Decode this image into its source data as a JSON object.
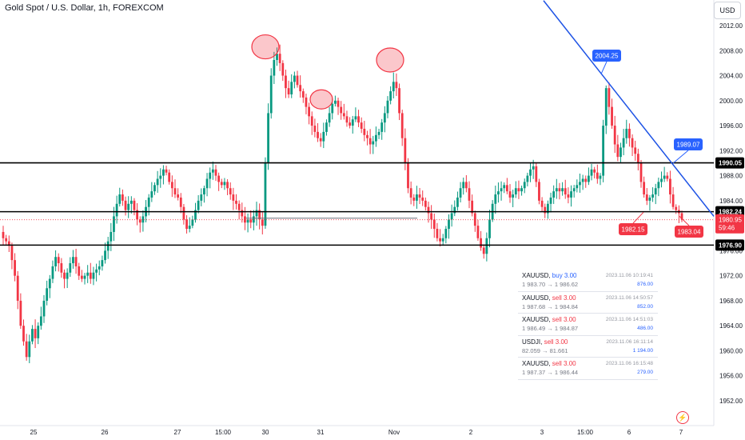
{
  "title": "Gold Spot / U.S. Dollar, 1h, FOREXCOM",
  "currency_button": "USD",
  "bolt_icon": "lightning-icon",
  "colors": {
    "up": "#089981",
    "down": "#f23645",
    "trendline": "#1e53e5",
    "level": "#000000",
    "marker_blue": "#2962ff",
    "marker_red": "#f23645"
  },
  "chart_data": {
    "type": "candlestick",
    "title": "Gold Spot / U.S. Dollar, 1h, FOREXCOM",
    "ylim": [
      1950,
      2014
    ],
    "y_ticks": [
      1952.0,
      1956.0,
      1960.0,
      1964.0,
      1968.0,
      1972.0,
      1976.0,
      1980.0,
      1984.0,
      1988.0,
      1992.0,
      1996.0,
      2000.0,
      2004.0,
      2008.0,
      2012.0
    ],
    "x_ticks": [
      "25",
      "26",
      "27",
      "15:00",
      "30",
      "31",
      "Nov",
      "2",
      "3",
      "15:00",
      "6",
      "7"
    ],
    "horizontal_levels": [
      {
        "label": "1990.05",
        "value": 1990.05
      },
      {
        "label": "1982.24",
        "value": 1982.24
      },
      {
        "label": "1976.90",
        "value": 1976.9
      }
    ],
    "current_price": {
      "label": "1980.95",
      "value": 1980.95,
      "countdown": "59:46"
    },
    "annotations": [
      {
        "text": "2004.25",
        "value": 2004.25,
        "color": "blue"
      },
      {
        "text": "1989.07",
        "value": 1989.07,
        "color": "blue"
      },
      {
        "text": "1982.15",
        "value": 1982.15,
        "color": "red"
      },
      {
        "text": "1983.04",
        "value": 1983.04,
        "color": "red"
      }
    ],
    "candles_close": [
      1978.0,
      1977.5,
      1976.8,
      1974.5,
      1972.0,
      1968.0,
      1964.0,
      1961.5,
      1959.0,
      1961.5,
      1963.5,
      1962.0,
      1964.0,
      1965.5,
      1968.0,
      1970.0,
      1971.5,
      1973.5,
      1975.0,
      1974.0,
      1972.5,
      1971.5,
      1972.5,
      1974.0,
      1975.0,
      1973.5,
      1972.0,
      1971.5,
      1972.0,
      1972.5,
      1971.5,
      1972.5,
      1973.0,
      1973.5,
      1974.5,
      1976.0,
      1977.5,
      1979.0,
      1981.5,
      1983.5,
      1985.0,
      1984.0,
      1982.5,
      1983.5,
      1984.0,
      1982.5,
      1981.0,
      1980.5,
      1981.5,
      1983.0,
      1984.5,
      1985.5,
      1986.5,
      1987.5,
      1988.0,
      1989.0,
      1988.5,
      1987.0,
      1986.0,
      1985.0,
      1984.5,
      1983.0,
      1981.0,
      1979.5,
      1980.0,
      1981.0,
      1982.5,
      1984.0,
      1985.0,
      1986.0,
      1987.5,
      1988.5,
      1989.0,
      1988.0,
      1987.0,
      1986.5,
      1987.0,
      1986.0,
      1985.0,
      1984.0,
      1983.5,
      1982.5,
      1981.5,
      1980.5,
      1981.0,
      1980.5,
      1981.5,
      1982.5,
      1981.0,
      1980.0,
      1990.0,
      1998.0,
      2004.0,
      2006.5,
      2007.5,
      2006.0,
      2004.0,
      2002.0,
      2001.0,
      2003.0,
      2004.0,
      2002.5,
      2001.5,
      2000.5,
      1999.0,
      1997.5,
      1996.0,
      1995.0,
      1994.0,
      1993.5,
      1995.0,
      1996.5,
      1998.0,
      1999.5,
      2000.0,
      1999.0,
      1998.0,
      1997.5,
      1996.5,
      1996.0,
      1997.0,
      1997.5,
      1996.5,
      1995.5,
      1994.5,
      1994.0,
      1993.0,
      1993.5,
      1994.5,
      1995.0,
      1996.5,
      1998.0,
      2000.0,
      2001.5,
      2003.0,
      2002.0,
      1998.0,
      1994.0,
      1990.0,
      1986.0,
      1984.5,
      1984.0,
      1985.0,
      1984.5,
      1984.0,
      1983.0,
      1982.0,
      1981.0,
      1979.5,
      1978.0,
      1977.5,
      1978.0,
      1979.5,
      1981.0,
      1982.0,
      1983.0,
      1984.5,
      1986.0,
      1987.0,
      1986.0,
      1984.0,
      1982.0,
      1980.0,
      1978.0,
      1976.5,
      1975.5,
      1978.0,
      1981.0,
      1983.5,
      1985.0,
      1985.5,
      1986.0,
      1986.5,
      1985.5,
      1984.5,
      1985.0,
      1986.0,
      1985.5,
      1986.0,
      1987.0,
      1988.0,
      1989.0,
      1989.5,
      1987.0,
      1984.0,
      1983.0,
      1982.0,
      1983.5,
      1984.5,
      1985.5,
      1986.0,
      1985.5,
      1986.0,
      1985.0,
      1984.5,
      1985.5,
      1986.0,
      1986.5,
      1987.0,
      1987.5,
      1987.0,
      1988.0,
      1989.0,
      1988.5,
      1987.5,
      1988.0,
      1996.0,
      2002.0,
      1999.0,
      1996.0,
      1993.0,
      1991.0,
      1992.5,
      1994.0,
      1995.5,
      1994.0,
      1992.5,
      1991.5,
      1990.0,
      1987.0,
      1985.0,
      1984.0,
      1984.5,
      1985.0,
      1986.0,
      1987.0,
      1987.5,
      1988.0,
      1987.5,
      1985.0,
      1983.0,
      1982.5,
      1982.0,
      1981.0
    ]
  },
  "trades": [
    {
      "symbol": "XAUUSD,",
      "action": "buy 3.00",
      "side": "buy",
      "datetime": "2023.11.06 10:19:41",
      "prices": "1 983.70 → 1 986.62",
      "pnl": "876.00"
    },
    {
      "symbol": "XAUUSD,",
      "action": "sell 3.00",
      "side": "sell",
      "datetime": "2023.11.06 14:50:57",
      "prices": "1 987.68 → 1 984.84",
      "pnl": "852.00"
    },
    {
      "symbol": "XAUUSD,",
      "action": "sell 3.00",
      "side": "sell",
      "datetime": "2023.11.06 14:51:03",
      "prices": "1 986.49 → 1 984.87",
      "pnl": "486.00"
    },
    {
      "symbol": "USDJI,",
      "action": "sell 3.00",
      "side": "sell",
      "datetime": "2023.11.06 16:11:14",
      "prices": "82.059 → 81.661",
      "pnl": "1 194.00"
    },
    {
      "symbol": "XAUUSD,",
      "action": "sell 3.00",
      "side": "sell",
      "datetime": "2023.11.06 16:15:48",
      "prices": "1 987.37 → 1 986.44",
      "pnl": "279.00"
    }
  ]
}
